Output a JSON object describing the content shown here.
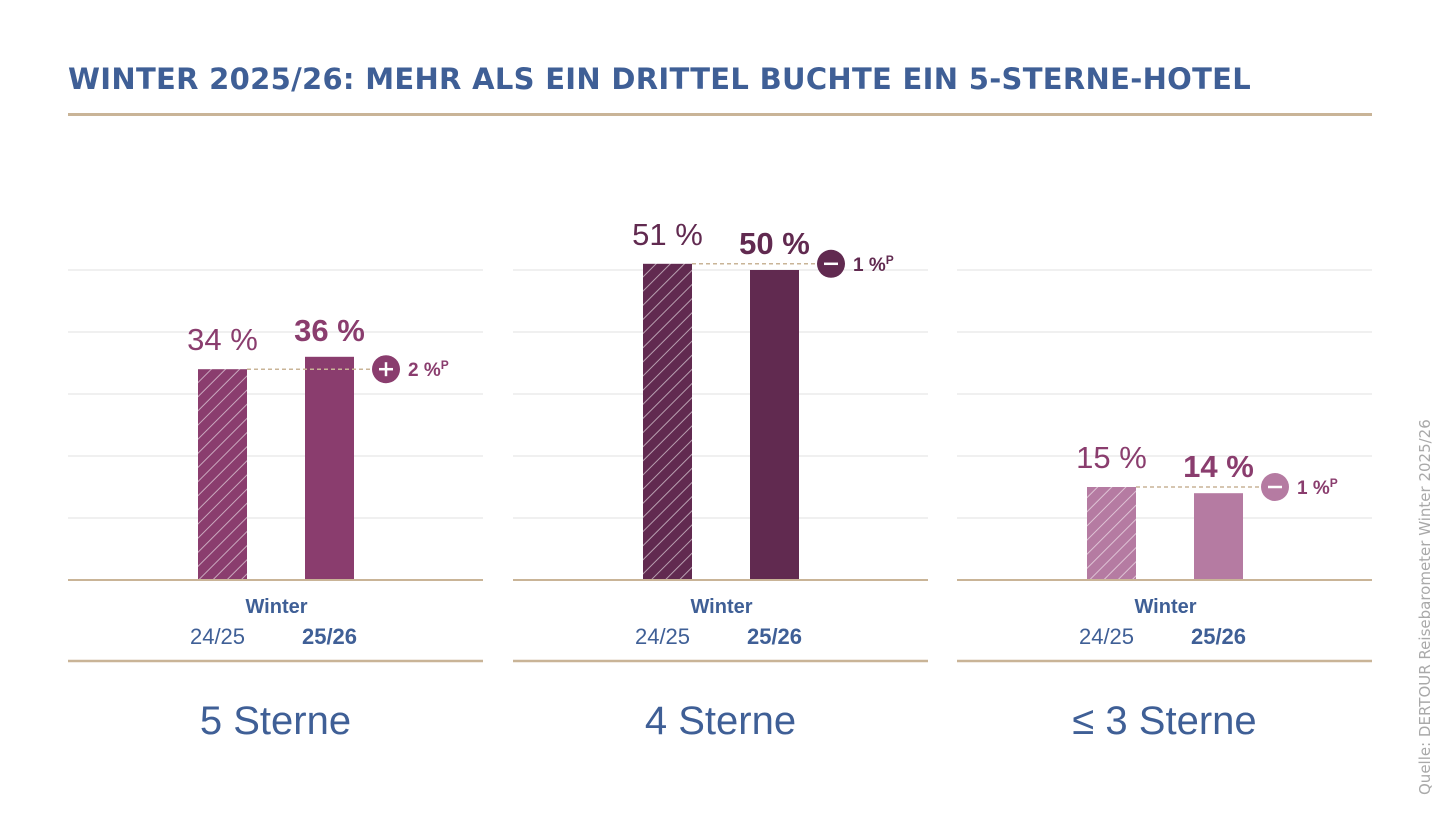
{
  "title": "WINTER 2025/26: MEHR ALS EIN DRITTEL BUCHTE EIN 5-STERNE-HOTEL",
  "source": "Quelle: DERTOUR Reisebarometer Winter 2025/26",
  "chart_data": [
    {
      "type": "bar",
      "category": "5 Sterne",
      "group_label": "Winter",
      "categories": [
        "24/25",
        "25/26"
      ],
      "value_labels": [
        "34 %",
        "36 %"
      ],
      "values": [
        34,
        36
      ],
      "ylim": [
        0,
        50
      ],
      "grid": true,
      "change": {
        "sign": "+",
        "label": "2 %",
        "unit": "P"
      },
      "colors": {
        "bar": "#8a3d6e",
        "label": "#8a3d6e"
      }
    },
    {
      "type": "bar",
      "category": "4 Sterne",
      "group_label": "Winter",
      "categories": [
        "24/25",
        "25/26"
      ],
      "value_labels": [
        "51 %",
        "50 %"
      ],
      "values": [
        51,
        50
      ],
      "ylim": [
        0,
        50
      ],
      "grid": true,
      "change": {
        "sign": "−",
        "label": "1 %",
        "unit": "P"
      },
      "colors": {
        "bar": "#612a50",
        "label": "#612a50"
      }
    },
    {
      "type": "bar",
      "category": "≤ 3 Sterne",
      "group_label": "Winter",
      "categories": [
        "24/25",
        "25/26"
      ],
      "value_labels": [
        "15 %",
        "14 %"
      ],
      "values": [
        15,
        14
      ],
      "ylim": [
        0,
        50
      ],
      "grid": true,
      "change": {
        "sign": "−",
        "label": "1 %",
        "unit": "P"
      },
      "colors": {
        "bar": "#b57ba2",
        "label": "#8a3d6e"
      }
    }
  ],
  "colors": {
    "title": "#3f5f96",
    "rule": "#c9b497",
    "grid": "#e0e0e0",
    "axis_text": "#3f5f96",
    "dash": "#c9b497"
  }
}
